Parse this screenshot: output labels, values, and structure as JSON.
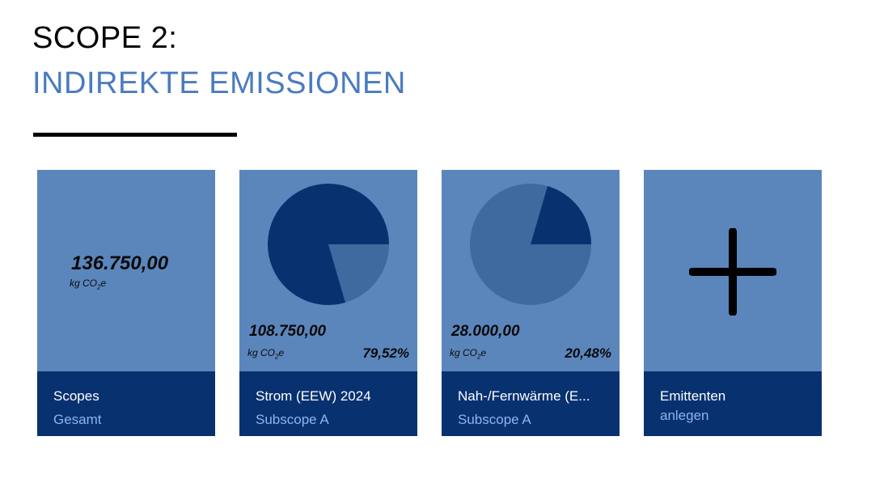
{
  "header": {
    "title_line1": "SCOPE 2:",
    "title_line2": "INDIREKTE EMISSIONEN"
  },
  "colors": {
    "card_bg": "#5b86bc",
    "card_footer": "#083170",
    "pie_dark": "#083170",
    "pie_light": "#3e6a9f",
    "accent_blue": "#4a7bbf",
    "footer_subtitle": "#8fb4ea"
  },
  "cards": [
    {
      "value": "136.750,00",
      "unit_prefix": "kg CO",
      "unit_sub": "2",
      "unit_suffix": "e",
      "title": "Scopes",
      "subtitle": "Gesamt"
    },
    {
      "value": "108.750,00",
      "unit_prefix": "kg CO",
      "unit_sub": "2",
      "unit_suffix": "e",
      "percent": "79,52%",
      "share": 0.7952,
      "title": "Strom (EEW) 2024",
      "subtitle": "Subscope A"
    },
    {
      "value": "28.000,00",
      "unit_prefix": "kg CO",
      "unit_sub": "2",
      "unit_suffix": "e",
      "percent": "20,48%",
      "share": 0.2048,
      "title": "Nah-/Fernwärme (E...",
      "subtitle": "Subscope A"
    },
    {
      "icon": "plus-icon",
      "title": "Emittenten",
      "subtitle": "anlegen"
    }
  ]
}
